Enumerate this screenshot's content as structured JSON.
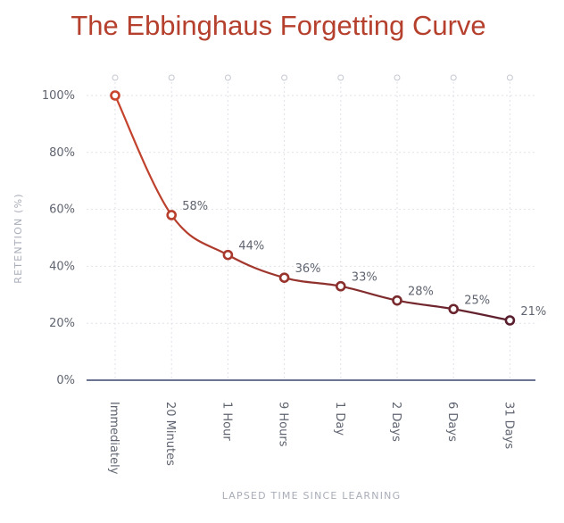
{
  "chart_data": {
    "type": "line",
    "title": "The Ebbinghaus Forgetting Curve",
    "xlabel": "LAPSED TIME SINCE LEARNING",
    "ylabel": "RETENTION (%)",
    "categories": [
      "Immediately",
      "20 Minutes",
      "1 Hour",
      "9 Hours",
      "1 Day",
      "2 Days",
      "6 Days",
      "31 Days"
    ],
    "values": [
      100,
      58,
      44,
      36,
      33,
      28,
      25,
      21
    ],
    "data_labels": [
      "",
      "58%",
      "44%",
      "36%",
      "33%",
      "28%",
      "25%",
      "21%"
    ],
    "yticks": [
      0,
      20,
      40,
      60,
      80,
      100
    ],
    "ytick_labels": [
      "0%",
      "20%",
      "40%",
      "60%",
      "80%",
      "100%"
    ],
    "ylim": [
      0,
      100
    ],
    "grid": true,
    "colors": {
      "title": "#b5402e",
      "line_start": "#c8442c",
      "line_end": "#5a1f2e",
      "axis": "#6c7493",
      "grid": "#dfe2e8"
    }
  }
}
